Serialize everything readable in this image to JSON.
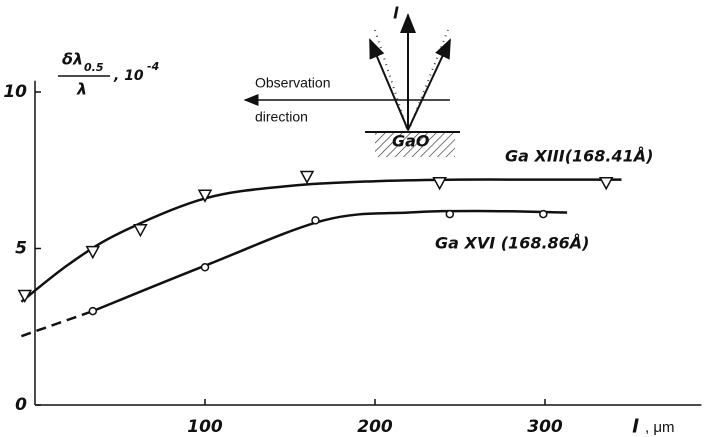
{
  "chart_data": {
    "type": "scatter",
    "y_label": {
      "numerator": "δλ",
      "subscript": "0.5",
      "denominator": "λ",
      "unit": ", 10",
      "exponent": "-4"
    },
    "x_label": {
      "symbol": "l",
      "unit": ", μm"
    },
    "xlim": [
      -8,
      392
    ],
    "ylim": [
      0,
      11
    ],
    "xticks": [
      100,
      200,
      300
    ],
    "yticks": [
      0,
      5,
      10
    ],
    "series": [
      {
        "name": "Ga XIII(168.41Å)",
        "color": "#111111",
        "marker": "triangle",
        "x": [
          -6,
          34,
          62,
          100,
          160,
          238,
          336
        ],
        "values": [
          3.5,
          4.9,
          5.6,
          6.7,
          7.3,
          7.1,
          7.1
        ]
      },
      {
        "name": "Ga XVI (168.86Å)",
        "color": "#111111",
        "marker": "circle",
        "x": [
          34,
          100,
          165,
          244,
          299
        ],
        "values": [
          3.0,
          4.4,
          5.9,
          6.1,
          6.1
        ]
      }
    ],
    "curves": [
      {
        "x": [
          -8,
          20,
          50,
          100,
          150,
          200,
          250,
          300,
          345
        ],
        "values": [
          3.3,
          4.5,
          5.5,
          6.6,
          7.0,
          7.15,
          7.2,
          7.2,
          7.2
        ],
        "dashed": false
      },
      {
        "x": [
          34,
          100,
          170,
          220,
          260,
          313
        ],
        "values": [
          3.0,
          4.45,
          5.9,
          6.15,
          6.2,
          6.15
        ],
        "dashed": false
      },
      {
        "x": [
          -8,
          34
        ],
        "values": [
          2.2,
          3.0
        ],
        "dashed": true
      }
    ],
    "inset": {
      "beam": "l",
      "arrow_label_1": "Observation",
      "arrow_label_2": "direction",
      "target": "GaO"
    }
  }
}
